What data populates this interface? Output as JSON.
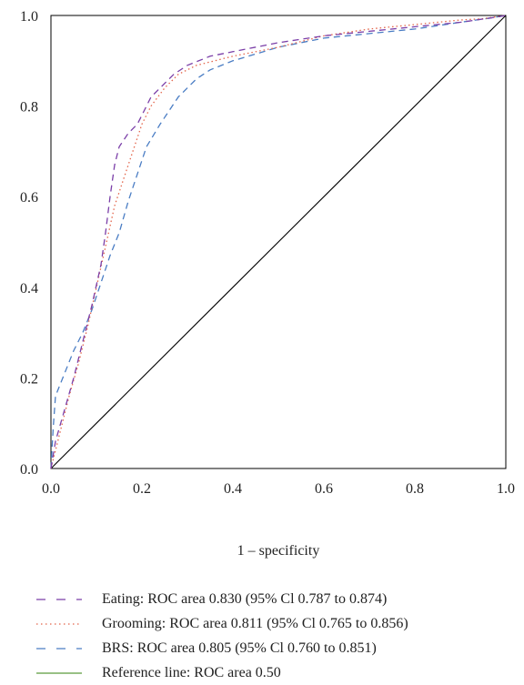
{
  "chart_data": {
    "type": "line",
    "xlabel": "1 – specificity",
    "ylabel": "",
    "xlim": [
      0,
      1
    ],
    "ylim": [
      0,
      1
    ],
    "x_ticks": [
      "0.0",
      "0.2",
      "0.4",
      "0.6",
      "0.8",
      "1.0"
    ],
    "y_ticks": [
      "0.0",
      "0.2",
      "0.4",
      "0.6",
      "0.8",
      "1.0"
    ],
    "grid": false,
    "legend_position": "bottom",
    "series": [
      {
        "name": "Eating: ROC area 0.830 (95% Cl 0.787 to 0.874)",
        "color": "#7b3fa8",
        "style": "dashed",
        "x": [
          0.0,
          0.01,
          0.03,
          0.05,
          0.07,
          0.09,
          0.11,
          0.12,
          0.13,
          0.14,
          0.15,
          0.17,
          0.19,
          0.2,
          0.22,
          0.24,
          0.27,
          0.3,
          0.35,
          0.4,
          0.5,
          0.6,
          0.7,
          0.8,
          0.9,
          0.97,
          1.0
        ],
        "y": [
          0.0,
          0.06,
          0.13,
          0.2,
          0.28,
          0.36,
          0.45,
          0.52,
          0.6,
          0.67,
          0.71,
          0.74,
          0.76,
          0.78,
          0.82,
          0.84,
          0.87,
          0.89,
          0.91,
          0.92,
          0.94,
          0.955,
          0.965,
          0.975,
          0.985,
          0.995,
          1.0
        ]
      },
      {
        "name": "Grooming: ROC area 0.811 (95% Cl 0.765 to 0.856)",
        "color": "#e3654b",
        "style": "dotted",
        "x": [
          0.0,
          0.02,
          0.04,
          0.06,
          0.08,
          0.1,
          0.12,
          0.14,
          0.16,
          0.18,
          0.2,
          0.22,
          0.25,
          0.28,
          0.32,
          0.36,
          0.4,
          0.5,
          0.6,
          0.7,
          0.8,
          0.9,
          0.95,
          1.0
        ],
        "y": [
          0.0,
          0.08,
          0.16,
          0.23,
          0.31,
          0.4,
          0.49,
          0.58,
          0.64,
          0.7,
          0.76,
          0.8,
          0.84,
          0.87,
          0.89,
          0.9,
          0.91,
          0.93,
          0.955,
          0.97,
          0.98,
          0.99,
          0.993,
          1.0
        ]
      },
      {
        "name": "BRS: ROC area 0.805 (95% Cl 0.760 to 0.851)",
        "color": "#4a7dc4",
        "style": "dashed",
        "x": [
          0.0,
          0.005,
          0.01,
          0.03,
          0.05,
          0.07,
          0.09,
          0.11,
          0.13,
          0.15,
          0.17,
          0.19,
          0.21,
          0.24,
          0.28,
          0.32,
          0.35,
          0.4,
          0.5,
          0.6,
          0.7,
          0.8,
          0.9,
          0.97,
          1.0
        ],
        "y": [
          0.0,
          0.09,
          0.16,
          0.21,
          0.26,
          0.3,
          0.35,
          0.41,
          0.47,
          0.52,
          0.59,
          0.65,
          0.71,
          0.76,
          0.82,
          0.86,
          0.88,
          0.9,
          0.93,
          0.95,
          0.96,
          0.97,
          0.985,
          0.995,
          1.0
        ]
      },
      {
        "name": "Reference line: ROC area 0.50",
        "color": "#5a9a3c",
        "plot_color": "#000000",
        "style": "solid",
        "x": [
          0.0,
          1.0
        ],
        "y": [
          0.0,
          1.0
        ]
      }
    ]
  }
}
